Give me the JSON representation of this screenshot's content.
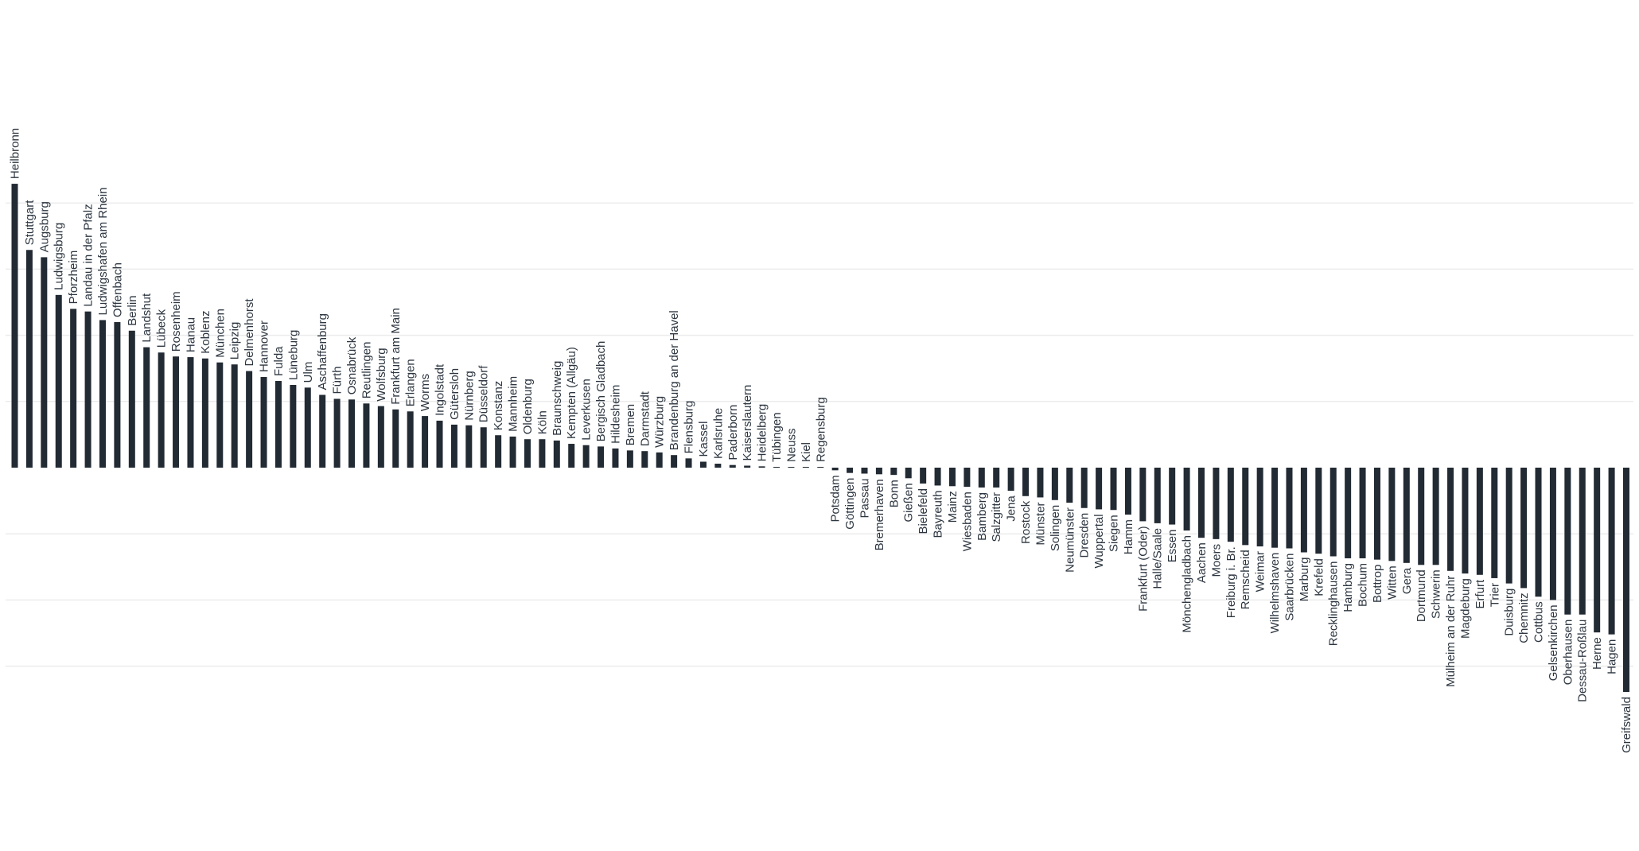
{
  "chart_data": {
    "type": "bar",
    "orientation": "vertical",
    "sorted": "descending",
    "color": "#222a33",
    "gridline_color": "#ececec",
    "grid": "horizontal",
    "y_axis_labels_shown": false,
    "legend": "none",
    "ylim": [
      -34.1,
      43.5
    ],
    "categories": [
      "Heilbronn",
      "Stuttgart",
      "Augsburg",
      "Ludwigsburg",
      "Pforzheim",
      "Landau in der Pfalz",
      "Ludwigshafen am Rhein",
      "Offenbach",
      "Berlin",
      "Landshut",
      "Lübeck",
      "Rosenheim",
      "Hanau",
      "Koblenz",
      "München",
      "Leipzig",
      "Delmenhorst",
      "Hannover",
      "Fulda",
      "Lüneburg",
      "Ulm",
      "Aschaffenburg",
      "Fürth",
      "Osnabrück",
      "Reutlingen",
      "Wolfsburg",
      "Frankfurt am Main",
      "Erlangen",
      "Worms",
      "Ingolstadt",
      "Gütersloh",
      "Nürnberg",
      "Düsseldorf",
      "Konstanz",
      "Mannheim",
      "Oldenburg",
      "Köln",
      "Braunschweig",
      "Kempten (Allgäu)",
      "Leverkusen",
      "Bergisch Gladbach",
      "Hildesheim",
      "Bremen",
      "Darmstadt",
      "Würzburg",
      "Brandenburg an der Havel",
      "Flensburg",
      "Kassel",
      "Karlsruhe",
      "Paderborn",
      "Kaiserslautern",
      "Heidelberg",
      "Tübingen",
      "Neuss",
      "Kiel",
      "Regensburg",
      "Potsdam",
      "Göttingen",
      "Passau",
      "Bremerhaven",
      "Bonn",
      "Gießen",
      "Bielefeld",
      "Bayreuth",
      "Mainz",
      "Wiesbaden",
      "Bamberg",
      "Salzgitter",
      "Jena",
      "Rostock",
      "Münster",
      "Solingen",
      "Neumünster",
      "Dresden",
      "Wuppertal",
      "Siegen",
      "Hamm",
      "Frankfurt (Oder)",
      "Halle/Saale",
      "Essen",
      "Mönchengladbach",
      "Aachen",
      "Moers",
      "Freiburg i. Br.",
      "Remscheid",
      "Weimar",
      "Wilhelmshaven",
      "Saarbrücken",
      "Marburg",
      "Krefeld",
      "Recklinghausen",
      "Hamburg",
      "Bochum",
      "Bottrop",
      "Witten",
      "Gera",
      "Dortmund",
      "Schwerin",
      "Mülheim an der Ruhr",
      "Magdeburg",
      "Erfurt",
      "Trier",
      "Duisburg",
      "Chemnitz",
      "Cottbus",
      "Gelsenkirchen",
      "Oberhausen",
      "Dessau-Roßlau",
      "Herne",
      "Hagen",
      "Greifswald"
    ],
    "values": [
      42.9,
      32.9,
      31.8,
      26.1,
      24.0,
      23.6,
      22.3,
      22.0,
      20.7,
      18.2,
      17.4,
      16.8,
      16.7,
      16.5,
      15.9,
      15.6,
      14.6,
      13.7,
      13.1,
      12.5,
      12.1,
      11.0,
      10.4,
      10.3,
      9.7,
      9.3,
      8.8,
      8.5,
      7.8,
      7.1,
      6.5,
      6.4,
      6.1,
      4.9,
      4.7,
      4.3,
      4.3,
      4.1,
      3.6,
      3.4,
      3.2,
      2.9,
      2.6,
      2.5,
      2.3,
      1.9,
      1.4,
      0.9,
      0.6,
      0.4,
      0.3,
      0.2,
      0.1,
      0.1,
      0.1,
      0.05,
      -0.4,
      -0.8,
      -0.9,
      -1.0,
      -1.1,
      -1.6,
      -2.4,
      -2.7,
      -2.8,
      -2.9,
      -3.0,
      -3.0,
      -3.5,
      -4.3,
      -4.5,
      -4.9,
      -5.3,
      -6.1,
      -6.3,
      -6.4,
      -7.1,
      -8.1,
      -8.4,
      -8.6,
      -9.5,
      -10.6,
      -10.8,
      -11.2,
      -11.7,
      -11.9,
      -12.1,
      -12.2,
      -12.8,
      -13.0,
      -13.4,
      -13.7,
      -13.7,
      -13.9,
      -14.1,
      -14.4,
      -14.7,
      -14.7,
      -15.6,
      -16.0,
      -16.2,
      -16.7,
      -17.5,
      -18.2,
      -19.5,
      -20.0,
      -22.2,
      -22.2,
      -24.9,
      -25.2,
      -33.9
    ]
  }
}
